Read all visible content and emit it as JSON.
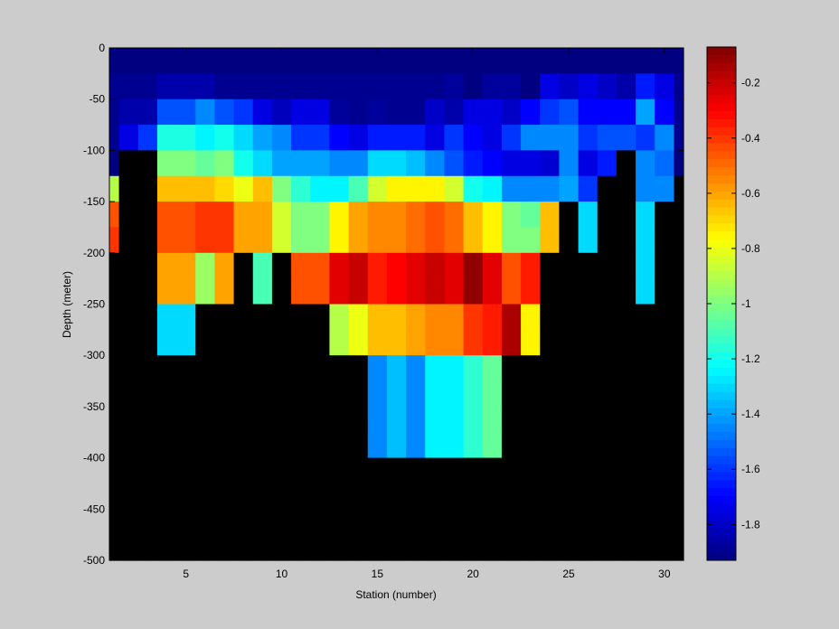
{
  "chart_data": {
    "type": "heatmap",
    "title": "",
    "xlabel": "Station (number)",
    "ylabel": "Depth (meter)",
    "xlim": [
      1,
      31
    ],
    "ylim": [
      -500,
      0
    ],
    "xticks": [
      5,
      10,
      15,
      20,
      25,
      30
    ],
    "yticks": [
      0,
      -50,
      -100,
      -150,
      -200,
      -250,
      -300,
      -350,
      -400,
      -450,
      -500
    ],
    "clim": [
      -1.93,
      -0.07
    ],
    "cticks": [
      -0.2,
      -0.4,
      -0.6,
      -0.8,
      -1,
      -1.2,
      -1.4,
      -1.6,
      -1.8
    ],
    "colormap": "jet",
    "nan_color": "#000000",
    "background_color": "#cccccc",
    "depth_row_height": 25,
    "depth_rows_top": [
      0,
      -25,
      -50,
      -75,
      -100,
      -125,
      -150,
      -175,
      -200,
      -225,
      -250,
      -275,
      -300,
      -325,
      -350,
      -375,
      -400,
      -425,
      -450,
      -475
    ],
    "stations": [
      1,
      2,
      3,
      4,
      5,
      6,
      7,
      8,
      9,
      10,
      11,
      12,
      13,
      14,
      15,
      16,
      17,
      18,
      19,
      20,
      21,
      22,
      23,
      24,
      25,
      26,
      27,
      28,
      29,
      30,
      31
    ],
    "values": [
      [
        -1.93,
        -1.93,
        -1.93,
        -1.93,
        -1.93,
        -1.93,
        -1.93,
        -1.93,
        -1.93,
        -1.93,
        -1.93,
        -1.93,
        -1.93,
        -1.93,
        -1.93,
        -1.93,
        -1.93,
        -1.93,
        -1.93,
        -1.93,
        -1.93,
        -1.93,
        -1.93,
        -1.93,
        -1.93,
        -1.93,
        -1.93,
        -1.93,
        -1.93,
        -1.93,
        -1.93
      ],
      [
        -1.9,
        -1.9,
        -1.9,
        -1.85,
        -1.85,
        -1.85,
        -1.9,
        -1.9,
        -1.9,
        -1.9,
        -1.9,
        -1.9,
        -1.9,
        -1.9,
        -1.9,
        -1.9,
        -1.9,
        -1.9,
        -1.88,
        -1.93,
        -1.88,
        -1.88,
        -1.93,
        -1.75,
        -1.8,
        -1.75,
        -1.8,
        -1.85,
        -1.65,
        -1.75,
        -1.9
      ],
      [
        -1.9,
        -1.85,
        -1.85,
        -1.55,
        -1.55,
        -1.45,
        -1.55,
        -1.6,
        -1.75,
        -1.82,
        -1.75,
        -1.75,
        -1.88,
        -1.9,
        -1.88,
        -1.9,
        -1.9,
        -1.8,
        -1.85,
        -1.75,
        -1.75,
        -1.8,
        -1.7,
        -1.6,
        -1.55,
        -1.7,
        -1.7,
        -1.7,
        -1.4,
        -1.7,
        -1.9
      ],
      [
        -1.9,
        -1.75,
        -1.6,
        -1.18,
        -1.18,
        -1.25,
        -1.2,
        -1.3,
        -1.4,
        -1.45,
        -1.6,
        -1.6,
        -1.7,
        -1.75,
        -1.65,
        -1.65,
        -1.65,
        -1.75,
        -1.6,
        -1.7,
        -1.75,
        -1.6,
        -1.45,
        -1.45,
        -1.45,
        -1.6,
        -1.55,
        -1.55,
        -1.6,
        -1.45,
        -1.9
      ],
      [
        -1.93,
        null,
        null,
        -1.0,
        -1.0,
        -1.05,
        -1.0,
        -1.2,
        -1.3,
        -1.4,
        -1.4,
        -1.4,
        -1.45,
        -1.45,
        -1.3,
        -1.3,
        -1.35,
        -1.45,
        -1.55,
        -1.65,
        -1.7,
        -1.75,
        -1.75,
        -1.78,
        -1.45,
        -1.75,
        -1.65,
        null,
        -1.45,
        -1.5,
        -1.93
      ],
      [
        -0.9,
        null,
        null,
        -0.65,
        -0.65,
        -0.65,
        -0.7,
        -0.8,
        -0.65,
        -1.0,
        -1.15,
        -1.25,
        -1.25,
        -1.1,
        -0.85,
        -0.75,
        -0.75,
        -0.75,
        -0.85,
        -1.2,
        -1.25,
        -1.45,
        -1.45,
        -1.45,
        -1.4,
        -1.6,
        null,
        null,
        -1.45,
        -1.45,
        null
      ],
      [
        -0.45,
        null,
        null,
        -0.45,
        -0.45,
        -0.4,
        -0.4,
        -0.6,
        -0.6,
        -0.85,
        -1.0,
        -1.0,
        -0.75,
        -0.6,
        -0.55,
        -0.55,
        -0.5,
        -0.45,
        -0.5,
        -0.65,
        -0.75,
        -1.0,
        -1.05,
        -0.65,
        null,
        -1.3,
        null,
        null,
        -1.3,
        null,
        null
      ],
      [
        -0.4,
        null,
        null,
        -0.45,
        -0.45,
        -0.4,
        -0.4,
        -0.6,
        -0.6,
        -0.85,
        -1.0,
        -1.0,
        -0.75,
        -0.6,
        -0.55,
        -0.55,
        -0.5,
        -0.45,
        -0.5,
        -0.65,
        -0.75,
        -1.0,
        -1.0,
        -0.65,
        null,
        -1.3,
        null,
        null,
        -1.3,
        null,
        null
      ],
      [
        null,
        null,
        null,
        -0.6,
        -0.6,
        -0.95,
        -0.6,
        null,
        -1.1,
        null,
        -0.45,
        -0.45,
        -0.25,
        -0.2,
        -0.35,
        -0.3,
        -0.25,
        -0.2,
        -0.25,
        -0.1,
        -0.25,
        -0.45,
        -0.35,
        null,
        null,
        null,
        null,
        null,
        -1.3,
        null,
        null
      ],
      [
        null,
        null,
        null,
        -0.6,
        -0.6,
        -0.95,
        -0.6,
        null,
        -1.1,
        null,
        -0.45,
        -0.45,
        -0.25,
        -0.2,
        -0.35,
        -0.3,
        -0.25,
        -0.2,
        -0.25,
        -0.1,
        -0.25,
        -0.45,
        -0.35,
        null,
        null,
        null,
        null,
        null,
        -1.3,
        null,
        null
      ],
      [
        null,
        null,
        null,
        -1.3,
        -1.3,
        null,
        null,
        null,
        null,
        null,
        null,
        null,
        -0.9,
        -0.8,
        -0.65,
        -0.65,
        -0.6,
        -0.55,
        -0.55,
        -0.4,
        -0.35,
        -0.15,
        -0.75,
        null,
        null,
        null,
        null,
        null,
        null,
        null,
        null
      ],
      [
        null,
        null,
        null,
        -1.3,
        -1.3,
        null,
        null,
        null,
        null,
        null,
        null,
        null,
        -0.9,
        -0.8,
        -0.65,
        -0.65,
        -0.6,
        -0.55,
        -0.55,
        -0.4,
        -0.35,
        -0.15,
        -0.75,
        null,
        null,
        null,
        null,
        null,
        null,
        null,
        null
      ],
      [
        null,
        null,
        null,
        null,
        null,
        null,
        null,
        null,
        null,
        null,
        null,
        null,
        null,
        null,
        -1.45,
        -1.35,
        -1.45,
        -1.25,
        -1.25,
        -1.15,
        -1.05,
        null,
        null,
        null,
        null,
        null,
        null,
        null,
        null,
        null,
        null
      ],
      [
        null,
        null,
        null,
        null,
        null,
        null,
        null,
        null,
        null,
        null,
        null,
        null,
        null,
        null,
        -1.45,
        -1.35,
        -1.45,
        -1.25,
        -1.25,
        -1.15,
        -1.05,
        null,
        null,
        null,
        null,
        null,
        null,
        null,
        null,
        null,
        null
      ],
      [
        null,
        null,
        null,
        null,
        null,
        null,
        null,
        null,
        null,
        null,
        null,
        null,
        null,
        null,
        -1.45,
        -1.35,
        -1.45,
        -1.25,
        -1.25,
        -1.15,
        -1.05,
        null,
        null,
        null,
        null,
        null,
        null,
        null,
        null,
        null,
        null
      ],
      [
        null,
        null,
        null,
        null,
        null,
        null,
        null,
        null,
        null,
        null,
        null,
        null,
        null,
        null,
        -1.45,
        -1.35,
        -1.45,
        -1.25,
        -1.25,
        -1.15,
        -1.05,
        null,
        null,
        null,
        null,
        null,
        null,
        null,
        null,
        null,
        null
      ],
      [
        null,
        null,
        null,
        null,
        null,
        null,
        null,
        null,
        null,
        null,
        null,
        null,
        null,
        null,
        null,
        null,
        null,
        null,
        null,
        null,
        null,
        null,
        null,
        null,
        null,
        null,
        null,
        null,
        null,
        null,
        null
      ],
      [
        null,
        null,
        null,
        null,
        null,
        null,
        null,
        null,
        null,
        null,
        null,
        null,
        null,
        null,
        null,
        null,
        null,
        null,
        null,
        null,
        null,
        null,
        null,
        null,
        null,
        null,
        null,
        null,
        null,
        null,
        null
      ],
      [
        null,
        null,
        null,
        null,
        null,
        null,
        null,
        null,
        null,
        null,
        null,
        null,
        null,
        null,
        null,
        null,
        null,
        null,
        null,
        null,
        null,
        null,
        null,
        null,
        null,
        null,
        null,
        null,
        null,
        null,
        null
      ],
      [
        null,
        null,
        null,
        null,
        null,
        null,
        null,
        null,
        null,
        null,
        null,
        null,
        null,
        null,
        null,
        null,
        null,
        null,
        null,
        null,
        null,
        null,
        null,
        null,
        null,
        null,
        null,
        null,
        null,
        null,
        null
      ]
    ]
  }
}
